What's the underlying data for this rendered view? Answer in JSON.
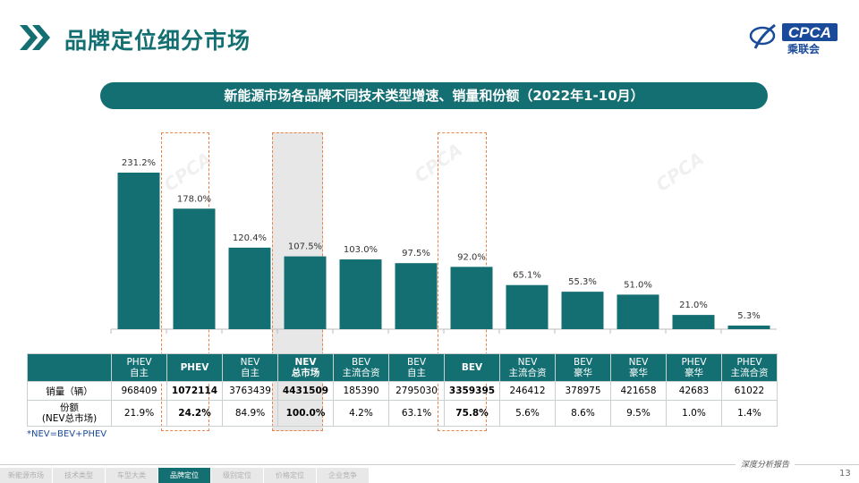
{
  "header": {
    "title": "品牌定位细分市场",
    "logo_text": "CPCA",
    "logo_sub": "乘联会"
  },
  "banner": "新能源市场各品牌不同技术类型增速、销量和份额（2022年1-10月）",
  "chart_data": {
    "type": "bar",
    "categories": [
      "PHEV 自主",
      "PHEV",
      "NEV 自主",
      "NEV 总市场",
      "BEV 主流合资",
      "BEV 自主",
      "BEV",
      "NEV 主流合资",
      "BEV 豪华",
      "NEV 豪华",
      "PHEV 豪华",
      "PHEV 主流合资"
    ],
    "values": [
      231.2,
      178.0,
      120.4,
      107.5,
      103.0,
      97.5,
      92.0,
      65.1,
      55.3,
      51.0,
      21.0,
      5.3
    ],
    "value_labels": [
      "231.2%",
      "178.0%",
      "120.4%",
      "107.5%",
      "103.0%",
      "97.5%",
      "92.0%",
      "65.1%",
      "55.3%",
      "51.0%",
      "21.0%",
      "5.3%"
    ],
    "ylim": [
      0,
      240
    ],
    "bar_color": "#146f72"
  },
  "table": {
    "headers": [
      [
        "PHEV",
        "自主"
      ],
      [
        "PHEV",
        ""
      ],
      [
        "NEV",
        "自主"
      ],
      [
        "NEV",
        "总市场"
      ],
      [
        "BEV",
        "主流合资"
      ],
      [
        "BEV",
        "自主"
      ],
      [
        "BEV",
        ""
      ],
      [
        "NEV",
        "主流合资"
      ],
      [
        "BEV",
        "豪华"
      ],
      [
        "NEV",
        "豪华"
      ],
      [
        "PHEV",
        "豪华"
      ],
      [
        "PHEV",
        "主流合资"
      ]
    ],
    "row_labels": [
      "销量（辆）",
      "份额\n(NEV总市场)"
    ],
    "sales": [
      "968409",
      "1072114",
      "3763439",
      "4431509",
      "185390",
      "2795030",
      "3359395",
      "246412",
      "378975",
      "421658",
      "42683",
      "61022"
    ],
    "shares": [
      "21.9%",
      "24.2%",
      "84.9%",
      "100.0%",
      "4.2%",
      "63.1%",
      "75.8%",
      "5.6%",
      "8.6%",
      "9.5%",
      "1.0%",
      "1.4%"
    ],
    "bold_columns": [
      1,
      3,
      6
    ]
  },
  "note": "*NEV=BEV+PHEV",
  "footer": {
    "tag": "深度分析报告",
    "page": "13",
    "nav": [
      "新能源市场",
      "技术类型",
      "车型大类",
      "品牌定位",
      "级别定位",
      "价格定位",
      "企业竞争"
    ],
    "active_nav": 3
  }
}
